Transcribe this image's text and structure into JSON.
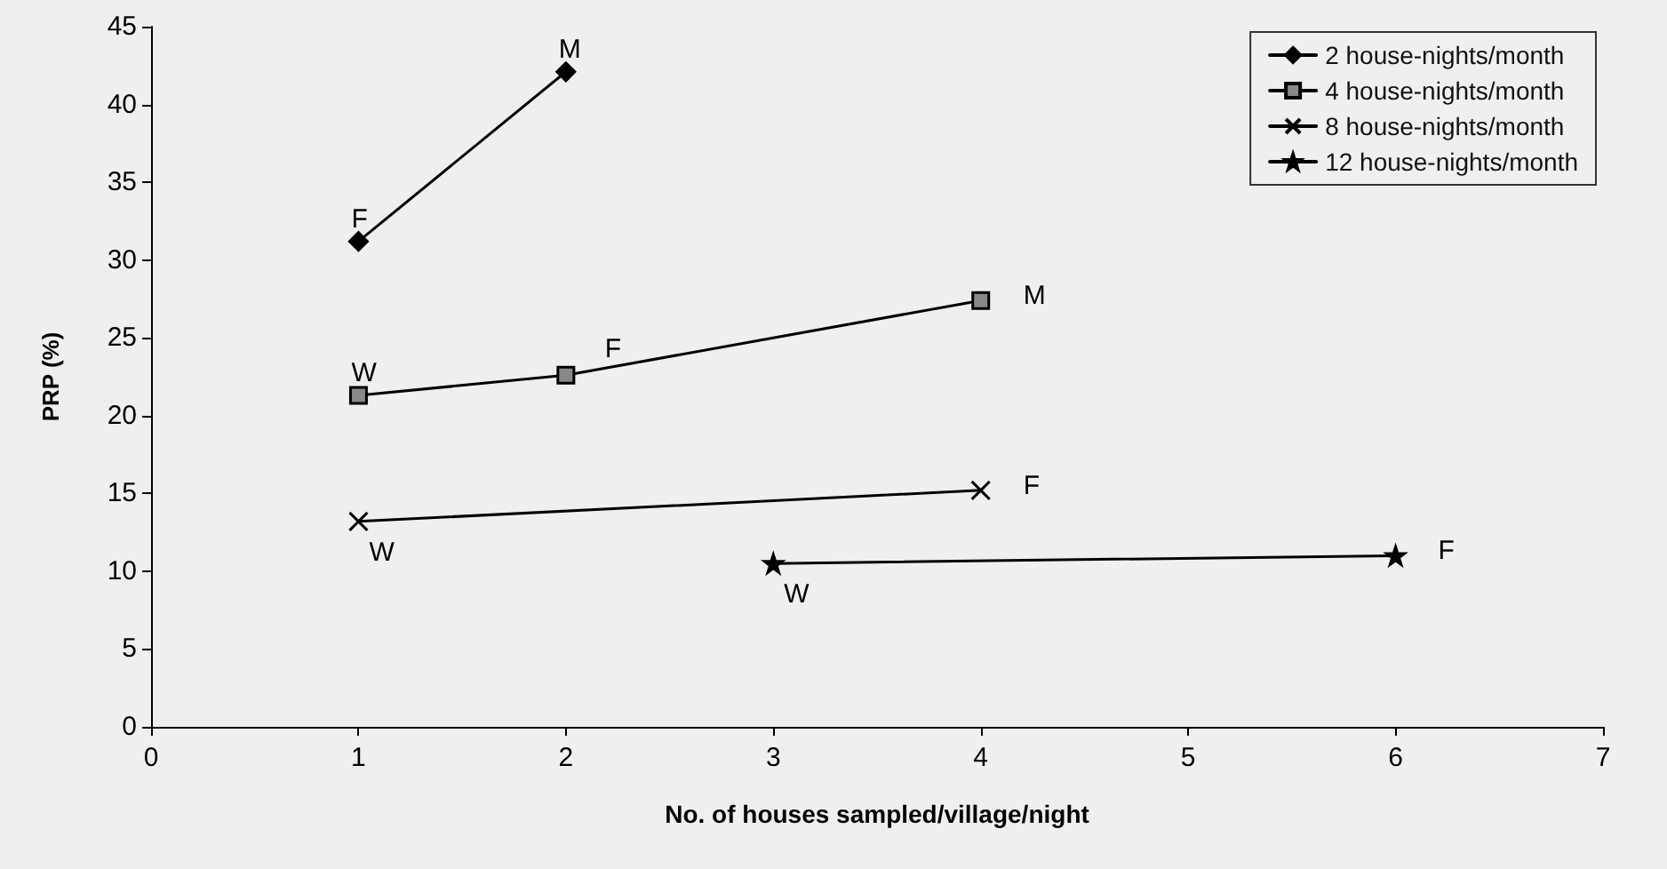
{
  "chart_data": {
    "type": "line",
    "xlabel": "No. of houses sampled/village/night",
    "ylabel": "PRP (%)",
    "xlim": [
      0,
      7
    ],
    "xticks": [
      0,
      1,
      2,
      3,
      4,
      5,
      6,
      7
    ],
    "ylim": [
      0,
      45
    ],
    "yticks": [
      0,
      5,
      10,
      15,
      20,
      25,
      30,
      35,
      40,
      45
    ],
    "grid": false,
    "legend": "top right",
    "line_style": "solid",
    "series": [
      {
        "name": "2 house-nights/month",
        "color": "#000000",
        "marker": "diamond",
        "x": [
          1,
          2
        ],
        "values": [
          31.2,
          42.1
        ]
      },
      {
        "name": "4 house-nights/month",
        "color": "#000000",
        "marker": "square",
        "x": [
          1,
          2,
          4
        ],
        "values": [
          21.3,
          22.6,
          27.4
        ]
      },
      {
        "name": "8 house-nights/month",
        "color": "#000000",
        "marker": "cross",
        "x": [
          1,
          4
        ],
        "values": [
          13.2,
          15.2
        ]
      },
      {
        "name": "12 house-nights/month",
        "color": "#000000",
        "marker": "star",
        "x": [
          3,
          6
        ],
        "values": [
          10.5,
          11.0
        ]
      }
    ],
    "annotations": [
      {
        "text": "F",
        "x": 1,
        "y": 31.2
      },
      {
        "text": "M",
        "x": 2,
        "y": 42.1
      },
      {
        "text": "W",
        "x": 1,
        "y": 21.3
      },
      {
        "text": "F",
        "x": 2,
        "y": 22.6
      },
      {
        "text": "M",
        "x": 4,
        "y": 27.4
      },
      {
        "text": "W",
        "x": 1,
        "y": 13.2
      },
      {
        "text": "F",
        "x": 4,
        "y": 15.2
      },
      {
        "text": "W",
        "x": 3,
        "y": 10.5
      },
      {
        "text": "F",
        "x": 6,
        "y": 11.0
      }
    ]
  }
}
